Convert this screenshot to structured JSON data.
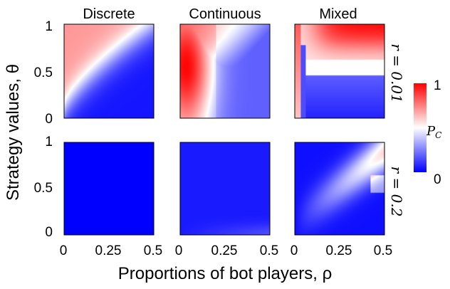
{
  "chart_data": {
    "type": "heatmap",
    "column_titles": [
      "Discrete",
      "Continuous",
      "Mixed"
    ],
    "row_labels": [
      "r = 0.01",
      "r = 0.2"
    ],
    "ylabel": "Strategy values, θ",
    "xlabel": "Proportions of bot players, ρ",
    "xlim": [
      0,
      0.5
    ],
    "ylim": [
      0,
      1
    ],
    "x_ticks": [
      "0",
      "0.25",
      "0.5"
    ],
    "y_ticks": [
      "0",
      "0.5",
      "1"
    ],
    "colorbar": {
      "label": "P_C",
      "label_main": "P",
      "label_sub": "C",
      "min": 0,
      "max": 1,
      "ticks": [
        "0",
        "1"
      ],
      "low_color": "#0000ff",
      "mid_color": "#ffffff",
      "high_color": "#ff0000"
    },
    "panels": [
      {
        "row": 0,
        "col": 0,
        "title": "Discrete",
        "description": "Red (P_C ~0.7) at low ρ / high θ, white diagonal boundary, blue at high ρ / low θ"
      },
      {
        "row": 0,
        "col": 1,
        "title": "Continuous",
        "description": "Red bulge at low ρ and mid θ, blue at high ρ low θ"
      },
      {
        "row": 0,
        "col": 2,
        "title": "Mixed",
        "description": "Strong red band at high θ increasing with ρ, blue lower region, thin white/red strip near low ρ"
      },
      {
        "row": 1,
        "col": 0,
        "title": "Discrete",
        "description": "Uniform blue (P_C ~0)"
      },
      {
        "row": 1,
        "col": 1,
        "title": "Continuous",
        "description": "Mostly blue, slightly lighter near bottom"
      },
      {
        "row": 1,
        "col": 2,
        "title": "Mixed",
        "description": "Blue with a white diagonal wedge at high ρ, mid θ with faint red tip"
      }
    ]
  }
}
